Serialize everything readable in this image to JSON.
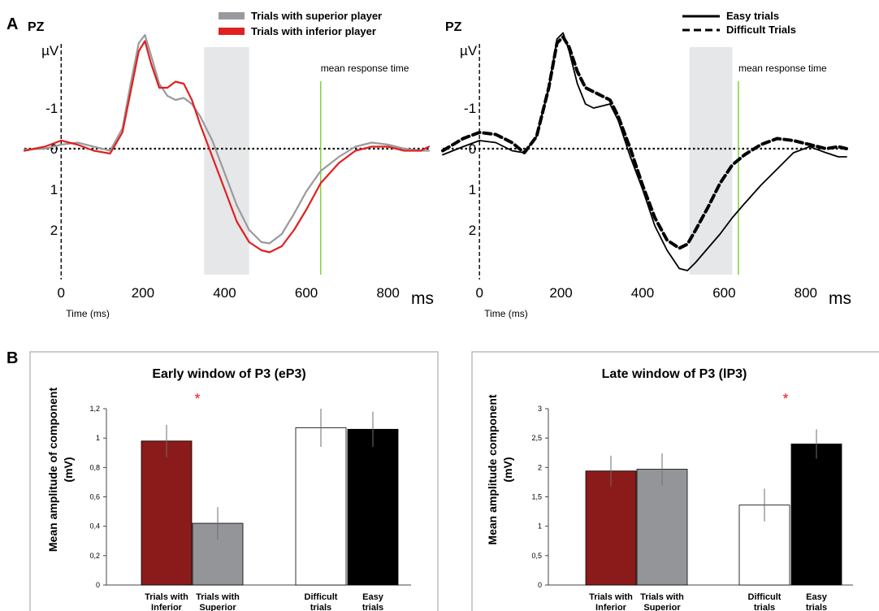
{
  "panelA": {
    "letter": "A",
    "left": {
      "electrode": "PZ",
      "unit": "µV",
      "ms_label": "ms",
      "time_label": "Time (ms)",
      "annotation": "mean response time",
      "legend": [
        {
          "label": "Trials with superior player",
          "color": "#9a9a9e"
        },
        {
          "label": "Trials with inferior player",
          "color": "#e02020"
        }
      ]
    },
    "right": {
      "electrode": "PZ",
      "unit": "µV",
      "ms_label": "ms",
      "time_label": "Time (ms)",
      "annotation": "mean response time",
      "legend": [
        {
          "label": "Easy trials",
          "style": "solid"
        },
        {
          "label": "Difficult Trials",
          "style": "dashed"
        }
      ]
    }
  },
  "panelB": {
    "letter": "B",
    "left": {
      "title": "Early window of P3 (eP3)",
      "ylabel_line1": "Mean amplitude of component",
      "ylabel_line2": "(mV)",
      "star": "*",
      "cat_labels": [
        [
          "Trials with",
          "Inferior"
        ],
        [
          "Trials with",
          "Superior"
        ],
        [
          "Difficult",
          "trials"
        ],
        [
          "Easy",
          "trials"
        ]
      ]
    },
    "right": {
      "title": "Late window of P3 (lP3)",
      "ylabel_line1": "Mean amplitude component",
      "ylabel_line2": "(mV)",
      "star": "*",
      "cat_labels": [
        [
          "Trials with",
          "Inferior"
        ],
        [
          "Trials with",
          "Superior"
        ],
        [
          "Difficult",
          "trials"
        ],
        [
          "Easy",
          "trials"
        ]
      ]
    }
  },
  "chart_data": [
    {
      "type": "line",
      "panel": "A-left",
      "xlabel": "Time (ms)",
      "ylabel": "µV",
      "x_ticks": [
        0,
        200,
        400,
        600,
        800
      ],
      "y_ticks": [
        -1,
        0,
        1,
        2
      ],
      "y_tick_labels": [
        "-1",
        "0",
        "1",
        "2"
      ],
      "xlim": [
        -90,
        900
      ],
      "ylim": [
        -2.5,
        3.1
      ],
      "y_inverted": true,
      "shaded_window_ms": [
        350,
        460
      ],
      "mean_response_time_ms": 635,
      "series": [
        {
          "name": "Trials with superior player",
          "color": "#9a9a9e",
          "x": [
            -90,
            -40,
            0,
            40,
            80,
            120,
            150,
            170,
            190,
            205,
            220,
            240,
            260,
            280,
            300,
            320,
            340,
            370,
            400,
            430,
            460,
            490,
            510,
            540,
            570,
            600,
            635,
            680,
            720,
            760,
            800,
            840,
            880,
            900
          ],
          "y": [
            0.02,
            0,
            -0.1,
            -0.15,
            -0.05,
            0.05,
            -0.5,
            -1.6,
            -2.6,
            -2.8,
            -2.3,
            -1.6,
            -1.3,
            -1.2,
            -1.25,
            -1.1,
            -0.8,
            -0.2,
            0.6,
            1.4,
            2,
            2.3,
            2.33,
            2.1,
            1.6,
            1.05,
            0.55,
            0.2,
            -0.05,
            -0.15,
            -0.1,
            0,
            0.05,
            0.05
          ]
        },
        {
          "name": "Trials with inferior player",
          "color": "#e02020",
          "x": [
            -90,
            -40,
            0,
            40,
            80,
            120,
            150,
            170,
            190,
            205,
            220,
            240,
            260,
            280,
            300,
            320,
            340,
            370,
            400,
            430,
            460,
            490,
            510,
            540,
            570,
            600,
            635,
            680,
            720,
            760,
            800,
            840,
            880,
            900
          ],
          "y": [
            0.05,
            -0.05,
            -0.2,
            -0.1,
            0.05,
            0.12,
            -0.4,
            -1.4,
            -2.4,
            -2.65,
            -2.1,
            -1.5,
            -1.5,
            -1.65,
            -1.6,
            -1.2,
            -0.6,
            0.2,
            1,
            1.8,
            2.3,
            2.5,
            2.55,
            2.4,
            2,
            1.5,
            0.85,
            0.35,
            0.05,
            -0.05,
            -0.05,
            0.05,
            0.05,
            -0.05
          ]
        }
      ]
    },
    {
      "type": "line",
      "panel": "A-right",
      "xlabel": "Time (ms)",
      "ylabel": "µV",
      "x_ticks": [
        0,
        200,
        400,
        600,
        800
      ],
      "y_ticks": [
        -1,
        0,
        1,
        2
      ],
      "y_tick_labels": [
        "-1",
        "0",
        "1",
        "2"
      ],
      "xlim": [
        -90,
        900
      ],
      "ylim": [
        -2.5,
        3.1
      ],
      "y_inverted": true,
      "shaded_window_ms": [
        515,
        620
      ],
      "mean_response_time_ms": 635,
      "series": [
        {
          "name": "Easy trials",
          "color": "#000000",
          "style": "solid",
          "x": [
            -90,
            -40,
            0,
            40,
            80,
            110,
            140,
            170,
            190,
            205,
            220,
            240,
            260,
            280,
            300,
            320,
            340,
            370,
            400,
            430,
            460,
            490,
            510,
            530,
            560,
            590,
            620,
            650,
            690,
            730,
            770,
            810,
            850,
            880,
            900
          ],
          "y": [
            0.15,
            -0.05,
            -0.2,
            -0.15,
            0.05,
            0.1,
            -0.3,
            -1.5,
            -2.7,
            -2.85,
            -2.4,
            -1.6,
            -1.1,
            -1,
            -1.05,
            -1.1,
            -0.7,
            0.2,
            1,
            1.9,
            2.5,
            2.95,
            3,
            2.8,
            2.45,
            2.1,
            1.7,
            1.35,
            0.9,
            0.5,
            0.1,
            -0.05,
            0.1,
            0.2,
            0.2
          ]
        },
        {
          "name": "Difficult Trials",
          "color": "#000000",
          "style": "dashed",
          "x": [
            -90,
            -40,
            0,
            40,
            80,
            110,
            140,
            170,
            190,
            205,
            220,
            240,
            260,
            280,
            300,
            320,
            340,
            370,
            400,
            430,
            460,
            490,
            510,
            530,
            560,
            590,
            620,
            650,
            690,
            730,
            770,
            810,
            850,
            880,
            900
          ],
          "y": [
            0.05,
            -0.25,
            -0.4,
            -0.35,
            -0.15,
            0.1,
            -0.3,
            -1.5,
            -2.6,
            -2.75,
            -2.5,
            -1.9,
            -1.5,
            -1.4,
            -1.3,
            -1.2,
            -0.8,
            0,
            0.9,
            1.7,
            2.25,
            2.45,
            2.35,
            2,
            1.45,
            0.85,
            0.4,
            0.15,
            -0.1,
            -0.25,
            -0.2,
            -0.1,
            0,
            -0.05,
            0
          ]
        }
      ]
    },
    {
      "type": "bar",
      "panel": "B-left",
      "title": "Early window of P3 (eP3)",
      "ylabel": "Mean amplitude of component (mV)",
      "ylim": [
        0,
        1.2
      ],
      "y_ticks": [
        0,
        0.2,
        0.4,
        0.6,
        0.8,
        1,
        1.2
      ],
      "y_tick_labels": [
        "0",
        "0,2",
        "0,4",
        "0,6",
        "0,8",
        "1",
        "1,2"
      ],
      "categories": [
        "Trials with Inferior",
        "Trials with Superior",
        "Difficult trials",
        "Easy trials"
      ],
      "values": [
        0.98,
        0.42,
        1.07,
        1.06
      ],
      "errors": [
        0.11,
        0.11,
        0.13,
        0.12
      ],
      "colors": [
        "#8b1a1a",
        "#939598",
        "#ffffff",
        "#000000"
      ]
    },
    {
      "type": "bar",
      "panel": "B-right",
      "title": "Late window of P3 (lP3)",
      "ylabel": "Mean amplitude component (mV)",
      "ylim": [
        0,
        3
      ],
      "y_ticks": [
        0,
        0.5,
        1,
        1.5,
        2,
        2.5,
        3
      ],
      "y_tick_labels": [
        "0",
        "0,5",
        "1",
        "1,5",
        "2",
        "2,5",
        "3"
      ],
      "categories": [
        "Trials with Inferior",
        "Trials with Superior",
        "Difficult trials",
        "Easy trials"
      ],
      "values": [
        1.94,
        1.97,
        1.36,
        2.4
      ],
      "errors": [
        0.26,
        0.27,
        0.28,
        0.25
      ],
      "colors": [
        "#8b1a1a",
        "#939598",
        "#ffffff",
        "#000000"
      ]
    }
  ]
}
